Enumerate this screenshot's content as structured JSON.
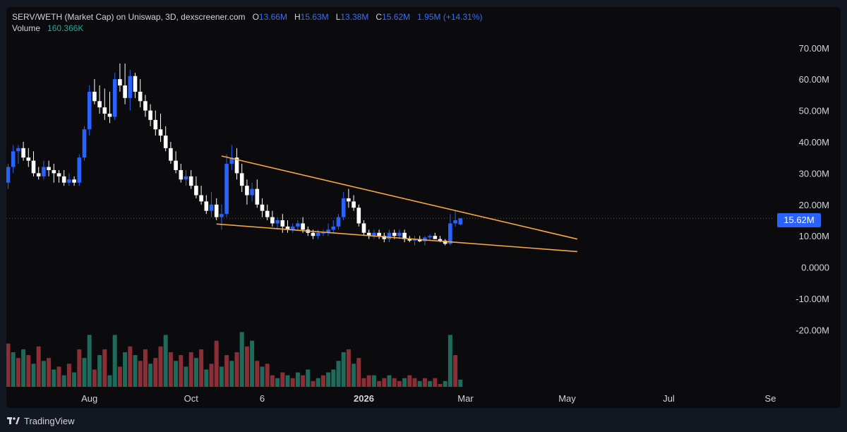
{
  "legend": {
    "symbol": "SERV/WETH (Market Cap) on Uniswap, 3D, dexscreener.com",
    "o_label": "O",
    "o_value": "13.66M",
    "h_label": "H",
    "h_value": "15.63M",
    "l_label": "L",
    "l_value": "13.38M",
    "c_label": "C",
    "c_value": "15.62M",
    "change": "1.95M (+14.31%)",
    "volume_label": "Volume",
    "volume_value": "160.366K"
  },
  "price_tag": "15.62M",
  "footer": {
    "brand": "TradingView"
  },
  "colors": {
    "up": "#2962ff",
    "down": "#ffffff",
    "vol_up": "#1e6b5c",
    "vol_down": "#8b2e35",
    "trendline": "#f5a742",
    "background": "#0b0b0e"
  },
  "chart_data": {
    "type": "candlestick",
    "title": "SERV/WETH (Market Cap) on Uniswap, 3D, dexscreener.com",
    "y_unit": "M",
    "ylim": [
      -28,
      74
    ],
    "yticks": [
      "70.00M",
      "60.00M",
      "50.00M",
      "40.00M",
      "30.00M",
      "20.00M",
      "10.00M",
      "0.0000",
      "-10.00M",
      "-20.00M"
    ],
    "ytick_values": [
      70,
      60,
      50,
      40,
      30,
      20,
      10,
      0,
      -10,
      -20
    ],
    "xticks": [
      {
        "label": "Aug",
        "bar": 16,
        "bold": false
      },
      {
        "label": "Oct",
        "bar": 36,
        "bold": false
      },
      {
        "label": "6",
        "bar": 50,
        "bold": false
      },
      {
        "label": "2026",
        "bar": 70,
        "bold": true
      },
      {
        "label": "Mar",
        "bar": 90,
        "bold": false
      },
      {
        "label": "May",
        "bar": 110,
        "bold": false
      },
      {
        "label": "Jul",
        "bar": 130,
        "bold": false
      },
      {
        "label": "Se",
        "bar": 150,
        "bold": false
      }
    ],
    "last_price": 15.62,
    "candles": [
      [
        27,
        33,
        25,
        32
      ],
      [
        32,
        39,
        30,
        37
      ],
      [
        37,
        39,
        33,
        38
      ],
      [
        38,
        40,
        34,
        35
      ],
      [
        35,
        38,
        32,
        34
      ],
      [
        34,
        37,
        29,
        30
      ],
      [
        30,
        32,
        28,
        29
      ],
      [
        29,
        34,
        28,
        32
      ],
      [
        32,
        34,
        29,
        31
      ],
      [
        31,
        33,
        27,
        30
      ],
      [
        30,
        31,
        27,
        29
      ],
      [
        29,
        31,
        26,
        27
      ],
      [
        27,
        30,
        26,
        28
      ],
      [
        28,
        29,
        26,
        27
      ],
      [
        27,
        36,
        26,
        35
      ],
      [
        35,
        45,
        34,
        44
      ],
      [
        44,
        58,
        42,
        56
      ],
      [
        56,
        60,
        52,
        53
      ],
      [
        53,
        58,
        49,
        51
      ],
      [
        51,
        57,
        47,
        49
      ],
      [
        49,
        56,
        46,
        48
      ],
      [
        48,
        62,
        47,
        60
      ],
      [
        60,
        65,
        56,
        58
      ],
      [
        58,
        65,
        52,
        54
      ],
      [
        54,
        63,
        50,
        61
      ],
      [
        61,
        62,
        54,
        56
      ],
      [
        56,
        60,
        51,
        53
      ],
      [
        53,
        55,
        48,
        50
      ],
      [
        50,
        52,
        45,
        47
      ],
      [
        47,
        50,
        42,
        44
      ],
      [
        44,
        49,
        40,
        42
      ],
      [
        42,
        45,
        37,
        38
      ],
      [
        38,
        40,
        33,
        34
      ],
      [
        34,
        37,
        30,
        31
      ],
      [
        31,
        33,
        27,
        28
      ],
      [
        28,
        31,
        26,
        29
      ],
      [
        29,
        31,
        25,
        26
      ],
      [
        26,
        29,
        22,
        23
      ],
      [
        23,
        26,
        20,
        21
      ],
      [
        21,
        23,
        17,
        18
      ],
      [
        18,
        24,
        16,
        20
      ],
      [
        20,
        22,
        15,
        16
      ],
      [
        16,
        20,
        12,
        17
      ],
      [
        17,
        36,
        16,
        33
      ],
      [
        33,
        39,
        31,
        35
      ],
      [
        35,
        38,
        28,
        30
      ],
      [
        30,
        33,
        24,
        26
      ],
      [
        26,
        28,
        20,
        23
      ],
      [
        23,
        27,
        21,
        25
      ],
      [
        25,
        28,
        19,
        20
      ],
      [
        20,
        22,
        16,
        18
      ],
      [
        18,
        20,
        15,
        16
      ],
      [
        16,
        18,
        13,
        14
      ],
      [
        14,
        16,
        12,
        15
      ],
      [
        15,
        17,
        11,
        13
      ],
      [
        13,
        15,
        11,
        12
      ],
      [
        12,
        14,
        11,
        13
      ],
      [
        13,
        15,
        12,
        14
      ],
      [
        14,
        16,
        11,
        12
      ],
      [
        12,
        13,
        10,
        11
      ],
      [
        11,
        12,
        9,
        10
      ],
      [
        10,
        12,
        9,
        11
      ],
      [
        11,
        12,
        10,
        11
      ],
      [
        11,
        14,
        10,
        12
      ],
      [
        12,
        15,
        11,
        13
      ],
      [
        13,
        17,
        12,
        16
      ],
      [
        16,
        24,
        15,
        22
      ],
      [
        22,
        25,
        19,
        21
      ],
      [
        21,
        23,
        18,
        19
      ],
      [
        19,
        20,
        13,
        14
      ],
      [
        14,
        15,
        10,
        11
      ],
      [
        11,
        12,
        9,
        10
      ],
      [
        10,
        12,
        9,
        11
      ],
      [
        11,
        12,
        9,
        10
      ],
      [
        10,
        11,
        8,
        9
      ],
      [
        9,
        12,
        8,
        11
      ],
      [
        11,
        12,
        9,
        10
      ],
      [
        10,
        12,
        9,
        11
      ],
      [
        11,
        12,
        8,
        9
      ],
      [
        9,
        10,
        8,
        8.5
      ],
      [
        8.5,
        10,
        7,
        9
      ],
      [
        9,
        10,
        8,
        8.3
      ],
      [
        8.3,
        10,
        7,
        9.5
      ],
      [
        9.5,
        10.5,
        8.5,
        10
      ],
      [
        10,
        11,
        9,
        9
      ],
      [
        9,
        10,
        8,
        8.5
      ],
      [
        8.5,
        9,
        7,
        7.5
      ],
      [
        7.5,
        17,
        7,
        14
      ],
      [
        14,
        18,
        13,
        15
      ],
      [
        13.66,
        15.63,
        13.38,
        15.62
      ]
    ],
    "volumes": [
      [
        -15,
        0
      ],
      [
        -12,
        1
      ],
      [
        -10,
        0
      ],
      [
        -13,
        1
      ],
      [
        -11,
        0
      ],
      [
        -8,
        1
      ],
      [
        -14,
        0
      ],
      [
        -9,
        1
      ],
      [
        -10,
        0
      ],
      [
        -6,
        1
      ],
      [
        -7,
        0
      ],
      [
        -4,
        1
      ],
      [
        -8,
        0
      ],
      [
        -5,
        1
      ],
      [
        -13,
        0
      ],
      [
        -10,
        1
      ],
      [
        -18,
        1
      ],
      [
        -6,
        0
      ],
      [
        -11,
        1
      ],
      [
        -13,
        0
      ],
      [
        -4,
        1
      ],
      [
        -18,
        1
      ],
      [
        -7,
        0
      ],
      [
        -12,
        1
      ],
      [
        -14,
        0
      ],
      [
        -11,
        1
      ],
      [
        -9,
        0
      ],
      [
        -13,
        0
      ],
      [
        -8,
        1
      ],
      [
        -10,
        0
      ],
      [
        -14,
        0
      ],
      [
        -18,
        1
      ],
      [
        -12,
        0
      ],
      [
        -9,
        1
      ],
      [
        -11,
        0
      ],
      [
        -7,
        1
      ],
      [
        -12,
        0
      ],
      [
        -10,
        1
      ],
      [
        -13,
        0
      ],
      [
        -6,
        1
      ],
      [
        -8,
        0
      ],
      [
        -16,
        0
      ],
      [
        -7,
        1
      ],
      [
        -11,
        0
      ],
      [
        -9,
        1
      ],
      [
        -12,
        0
      ],
      [
        -19,
        1
      ],
      [
        -14,
        0
      ],
      [
        -16,
        1
      ],
      [
        -9,
        0
      ],
      [
        -7,
        1
      ],
      [
        -8,
        0
      ],
      [
        -4,
        0
      ],
      [
        -3,
        1
      ],
      [
        -5,
        0
      ],
      [
        -4,
        1
      ],
      [
        -3,
        0
      ],
      [
        -5,
        1
      ],
      [
        -4,
        0
      ],
      [
        -6,
        1
      ],
      [
        -2,
        0
      ],
      [
        -3,
        1
      ],
      [
        -4,
        0
      ],
      [
        -5,
        1
      ],
      [
        -6,
        1
      ],
      [
        -9,
        1
      ],
      [
        -12,
        1
      ],
      [
        -13,
        0
      ],
      [
        -8,
        1
      ],
      [
        -10,
        0
      ],
      [
        -3,
        0
      ],
      [
        -4,
        0
      ],
      [
        -4,
        1
      ],
      [
        -2,
        0
      ],
      [
        -3,
        0
      ],
      [
        -4,
        1
      ],
      [
        -3,
        0
      ],
      [
        -2,
        0
      ],
      [
        -3,
        1
      ],
      [
        -4,
        0
      ],
      [
        -3,
        0
      ],
      [
        -2,
        1
      ],
      [
        -3,
        0
      ],
      [
        -2,
        1
      ],
      [
        -3,
        0
      ],
      [
        -1,
        0
      ],
      [
        -2,
        1
      ],
      [
        -18,
        1
      ],
      [
        -11,
        0
      ],
      [
        -2.5,
        1
      ]
    ],
    "trendlines": [
      {
        "name": "upper",
        "from": {
          "bar": 42,
          "value": 35.5
        },
        "to": {
          "bar": 112,
          "value": 9
        }
      },
      {
        "name": "lower",
        "from": {
          "bar": 41,
          "value": 13.8
        },
        "to": {
          "bar": 112,
          "value": 5
        }
      }
    ]
  }
}
